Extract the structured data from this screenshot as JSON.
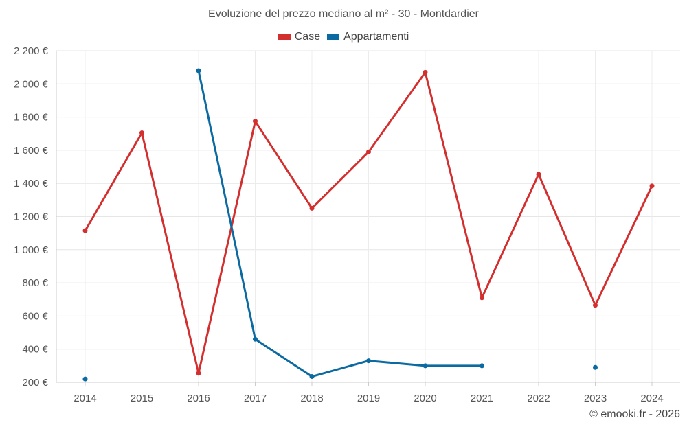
{
  "chart_data": {
    "type": "line",
    "title": "Evoluzione del prezzo mediano al m² - 30 - Montdardier",
    "categories": [
      "2014",
      "2015",
      "2016",
      "2017",
      "2018",
      "2019",
      "2020",
      "2021",
      "2022",
      "2023",
      "2024"
    ],
    "series": [
      {
        "name": "Case",
        "color": "#d32f2f",
        "values": [
          1115,
          1705,
          255,
          1775,
          1250,
          1590,
          2070,
          710,
          1455,
          665,
          1385
        ]
      },
      {
        "name": "Appartamenti",
        "color": "#0a6aa1",
        "values": [
          220,
          null,
          2080,
          460,
          235,
          330,
          300,
          300,
          null,
          290,
          null
        ]
      }
    ],
    "ylim": [
      200,
      2200
    ],
    "yticks": [
      200,
      400,
      600,
      800,
      1000,
      1200,
      1400,
      1600,
      1800,
      2000,
      2200
    ],
    "ytick_labels": [
      "200 €",
      "400 €",
      "600 €",
      "800 €",
      "1 000 €",
      "1 200 €",
      "1 400 €",
      "1 600 €",
      "1 800 €",
      "2 000 €",
      "2 200 €"
    ],
    "grid": true,
    "legend_position": "top-center"
  },
  "credit": "© emooki.fr - 2026"
}
